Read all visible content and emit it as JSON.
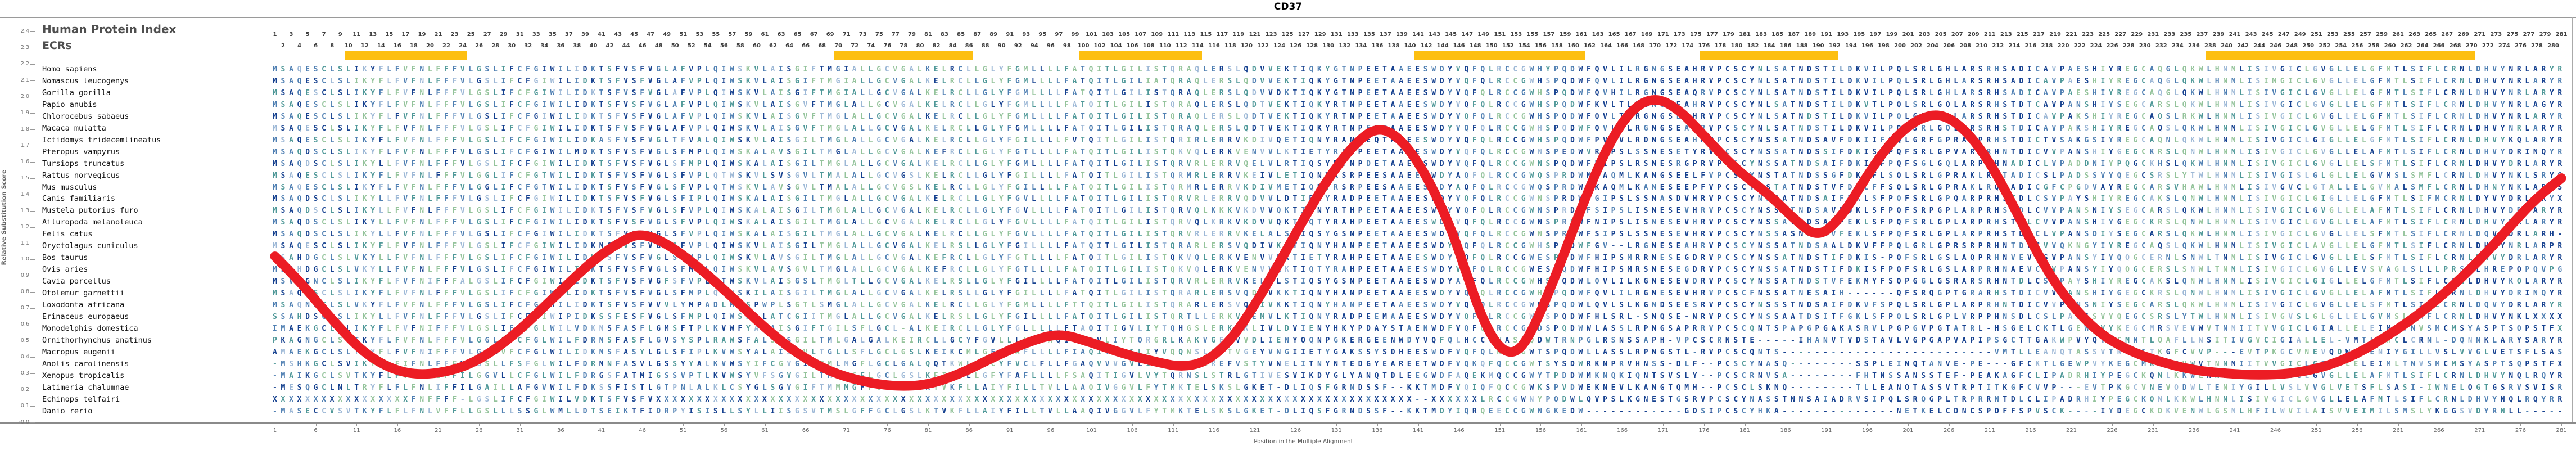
{
  "title": "CD37",
  "header": {
    "index_label": "Human Protein Index",
    "ecr_label": "ECRs"
  },
  "axes": {
    "y": {
      "title": "Relative Substitution Score",
      "max": 2.4,
      "min": 0.0,
      "step": 0.1
    },
    "x": {
      "title": "Position in the Multiple Alignment",
      "start": 1,
      "step": 5,
      "end": 281
    },
    "top_numbers": {
      "start": 1,
      "end": 281
    }
  },
  "colors": {
    "navy": "#16418f",
    "steel": "#4f7fb2",
    "teal": "#4f9898",
    "sage": "#94c39b",
    "lightsteel": "#9db8d6",
    "curve_red": "#ec1c24",
    "ecr_yellow": "#fdbf11",
    "species_text": "#141414",
    "axis_text": "#777777"
  },
  "ecr_regions": [
    {
      "start": 10,
      "end": 24
    },
    {
      "start": 70,
      "end": 86
    },
    {
      "start": 100,
      "end": 114
    },
    {
      "start": 141,
      "end": 161
    },
    {
      "start": 176,
      "end": 192
    },
    {
      "start": 238,
      "end": 270
    }
  ],
  "chart_data": {
    "type": "line",
    "title": "CD37",
    "xlabel": "Position in the Multiple Alignment",
    "ylabel": "Relative Substitution Score",
    "xlim": [
      1,
      281
    ],
    "ylim": [
      0.0,
      2.4
    ],
    "grid": false,
    "series_name": "conservation-score",
    "x": [
      1,
      4,
      8,
      12,
      16,
      20,
      25,
      30,
      35,
      40,
      44,
      46,
      49,
      53,
      57,
      61,
      65,
      69,
      73,
      77,
      81,
      85,
      89,
      93,
      97,
      101,
      105,
      109,
      112,
      115,
      118,
      121,
      124,
      127,
      130,
      133,
      136,
      139,
      142,
      145,
      147,
      149,
      151,
      153,
      155,
      158,
      161,
      164,
      167,
      170,
      173,
      176,
      180,
      184,
      187,
      190,
      193,
      196,
      199,
      202,
      205,
      208,
      211,
      214,
      217,
      220,
      224,
      228,
      232,
      236,
      240,
      244,
      248,
      252,
      256,
      260,
      264,
      268,
      272,
      275,
      278,
      281
    ],
    "y": [
      1.02,
      0.87,
      0.63,
      0.42,
      0.31,
      0.29,
      0.35,
      0.52,
      0.76,
      1.0,
      1.13,
      1.16,
      1.1,
      0.95,
      0.77,
      0.58,
      0.42,
      0.31,
      0.25,
      0.22,
      0.23,
      0.3,
      0.4,
      0.49,
      0.55,
      0.49,
      0.42,
      0.37,
      0.34,
      0.37,
      0.5,
      0.72,
      0.98,
      1.25,
      1.5,
      1.7,
      1.82,
      1.74,
      1.52,
      1.2,
      0.9,
      0.62,
      0.45,
      0.42,
      0.56,
      0.92,
      1.32,
      1.68,
      1.92,
      2.0,
      1.92,
      1.76,
      1.55,
      1.4,
      1.25,
      1.13,
      1.27,
      1.52,
      1.73,
      1.86,
      1.9,
      1.8,
      1.6,
      1.32,
      1.02,
      0.78,
      0.56,
      0.44,
      0.37,
      0.32,
      0.3,
      0.29,
      0.3,
      0.34,
      0.42,
      0.54,
      0.68,
      0.85,
      1.05,
      1.22,
      1.38,
      1.5
    ]
  },
  "alignment": {
    "rows": [
      {
        "species": "Homo sapiens",
        "seq": "MSAQESCLSLIKYFLFVFNLFFFVLGSLIFCFGIWILIDKTSFVSFVGLAFVPLQIWSKVLAISGIFTMGIALLGCVGALKELRCLLGLYFGMLLLLFATQITLGILISTQRAQLERSLQDVVEKTIQKYGTNPEETAAEESWDYVQFQLRCCGWHYPQDWFQVLILRGNGSEAHRVPCSCYNLSATNDSTILDKVILPQLSRLGHLARSRHSADICAVPAESHIYREGCAQGLQKWLHNNLISIVGICLGVGLLELGFMTLSIFLCRNLDHVYNRLARYR"
      },
      {
        "species": "Nomascus leucogenys",
        "seq": "MSAQESCLSLIKYFLFVFNLFFFVLGSLIFCFGIWILIDKTSFVSFVGLAFVPLQIWSKVLAISGIFTMGIALLGCVGALKELRCLLGLYFGMLLLLFATQITLGILIATQRAQLERSLQDVVEKTIQKYGTNPEETAAEESWDYVQFQLRCCGWHSPQDWFQVLILRGNGSEAHRVPCSCYNLSATNDSTILDKVILPQLSRLGHLARSRHSADICAVPAESHIYREGCAQGLQKWLHNNLISIMGICLGVGLLELGFMTLSIFLCRNLDHVYNRLARYR"
      },
      {
        "species": "Gorilla gorilla",
        "seq": "MSAQESCLSLIKYFLFVFNLFFFVLGSLIFCFGIWILIDKTSFVSFVGLAFVPLQIWSKVLAISGIFTMGIALLGCVGALKELRCLLGLYFGMLLLLFATQITLGILISTQRAQLERSLQDVVDKTIQKYGTNPEETAAEESWDYVQFQLRCCGWHSPQDWFQVHILRGNGSEAQRVPCSCYNLSATNDSTILDKVILPQLSRLGHLARSRHSADICAVPAESHIYREGCAQGLQKWLHNNLISIVGICLGVGLLELGFMTLSIFLCRNLDHVYNRLARYR"
      },
      {
        "species": "Papio anubis",
        "seq": "MSAQESCLSLIKYFLFVFNLFFFVLGSLIFCFGIWILIDKTSFVSFVGLAFVPLQIWSKVLAISGVFTMGLALLGCVGALKELRCLLGLYFGMLLLLFATQITLGILISTQRAQLERSLQDTVEKTIQKYRTNPEETAAEESWDYVQFQLRCCGWHSPQDWFKVLTLRGNGSEAHRVPCSCYNLSATNDSTILDKVTLPQLSRLGQLARSRHSTDTCAVPANSHIYSEGCARSLQKWLHNNLISIVGICLGVGLLELGFMTLSIFLCRNLDHVYNRLAGYR"
      },
      {
        "species": "Chlorocebus sabaeus",
        "seq": "MSAQESCLSLIKYFLFVFNLFFFVLGSLIFCFGIWILIDKTSFVSFVGLAFVPLQIWSKVLAISGVFTMGLALLGCVGALKELRCLLGLYFGMLLLLFATQITLGILISTQRAQLERSLQDTVEKTIQKYRTNPEETAAEESWDYVQFQLRCCGWHSPQDWFQVLTLRGNGSEAHRVPCSCYNLSATNDSTILDKVILPQLGRLGQLARSRHSTDICAVPAKSHIYREGCAQSLRKWLHNNLISIVGICLGVGLLELGFMTLSIFLCRNLDHVYNRLARYR"
      },
      {
        "species": "Macaca mulatta",
        "seq": "MSAQESCLSLIKYFLFVFNLFFFVLGSLIFCFGIWILIDKTSFVSFVGLAFVPLQIWSKVLAISGVFTMGLALLGCVGALKELRCLLGLYFGMLLLLFATQITLGILISTQRAQLERSLQDTVEKTIQKYRTNPEETAAEESWDYVQFQLRCCGWHSPQDWFQVLTLRGNGSEAHRVPCSCYNLSATNDSTILDKVILPQLSRLGQLARSRHSTDICAVPAKSHIYREGCAQSLQKWLHNNLISIVGICLGVGLLELGFMTLSIFLCRNLDHVYNRLARYR"
      },
      {
        "species": "Ictidomys tridecemlineatus",
        "seq": "MSAQESCLSLIKYFLFVFNLFFFVLGSLIFCFGIWILIDKASFVSFVGLTFVALQIWSKVLAISGILTMGLALLGCVGALKELRCLLGLYFGILLLLFVTQITLGILISTQRIRLERRVKDIVQETIQNYRANPEQTAAEESWDYVQFQLRCCGWHSPQDWFPVRVLRDNGSEAHHVPCSCYNSSATNDSAVFDKIIFPQLGRFGPRARPRHSTDICTVSAKGSIYREGCAQNLQKWLHNNLISIVGICLGIGLLELGFMTLSIFLCRNLDHVYKQLARYR"
      },
      {
        "species": "Pteropus vampyrus",
        "seq": "MSAQDSCLSLIKYFLFVFNLFFFVLGSLIFCFGIWILMDKTSFVSFVGLSFMPLQIWSKALAVSGILTMGLALLGCVGALKEFRCLLGLYFGTLLLLFATQITLGILISTQKVQLERKVENVVLKTIETYRAHPEETAAEESWDYVQFQLRCCGWNSPEDWVRVPSLSSNESETYRVPCSCYNSSATNDSSIFDKISLPQFSRLGPVARPRHNTDICVVPANSHIYGEGCKRSLQNWLHNNLISIVGICLGVGLLELAFMTLSIFLCRNLDHVYDRINQYR"
      },
      {
        "species": "Tursiops truncatus",
        "seq": "MSAQDSCLSLIKYLLFVFNLFFFVLGSLIFCFGIWILIDKTSFVSFVGLSFMPLQIWSKALAISGILTMGLALLGCVGALKELRCLLGLYFGMLLLLFATQITLGILISTQRVRLERRVQELVLRTIQSYRTNPDETAAEESWDYVQFQLRCCGWNSPQDWFRIPSLRSNESRGPRVPCSCYNSSATNDSAIFDKISFPQFSGLGQLARPRHNADICLVPADDNIYPQGCKHSLQKWLHNNLISIVGICLGVGLLELSFMTLSIFLCRNLDHVYDRLARYR"
      },
      {
        "species": "Rattus norvegicus",
        "seq": "MSAQESCLSLIKYFLFVFNLFFFVLGGLIFCFGTWILIDKTSFVSFVGLSFVPLQTWSKVLSVSGVLTMALALLGCVGSLKELRCLLGLYFGILLLLFATQITLGILISTQRMRLERRVKEIVLETIQNYRSRPEESAAEESWDYAQFQLRCCGWQSPRDWNKAQMLKANGSEELFVPCSCYNSTATNDSSGFDKLFLSQLSRLGPRAKLRQTADICSLPADSSVYQEGCSRSLYTWLHNNLISIVGISLGLGLLELGVMSLSMFLCRNLDHVYNKLSRYS"
      },
      {
        "species": "Mus musculus",
        "seq": "MSAQESCLSLIKYFLFVFNLFFFVLGGLIFCFGTWILIDKTSFVSFVGLSFVPLQTWSKVLAVSGVLTMALALLGCVGSLKELRCLLGLYFGILLLLFATQITLGILISTQRMRLERRVKDIVMETIQNYRSRPEESAAEESWDYAQFQLRCCGWQSPRDWNKAQMLKANESEEPFVPCSCYNSTATNDSTVFDKLFFSQLSRLGPRAKLRQTADICGFCPGDVAYREGCARSVHAWLHNNLISIVGVCLGTALLELGVMALSMFLCRNLDHNYNKLARYS"
      },
      {
        "species": "Canis familiaris",
        "seq": "MSAQDSCLSLIKYLLFVFNLFFFVLGSLIFCFGIWILIDKTSFVSFVGLSFIPLQIWSKALAISGILTMGLALLGCVGALKELRCLLGLYFGVLLLLFATQITLGILISTQRVRLERRVQDVVLDTIRNYRADPEETAAEESWDYVQFQLRCCGWNSPRDWFGIPSLSSNASDVHRVPCSCYNSSATNDSAIFEKLSFPQFSRLGPQARPRHSTDLCSVPAYSHIYREGCAKSLQNWLHNNLISIVGICLGIGLLELGFMTLSIFMCRNLDYVYDRLARYX"
      },
      {
        "species": "Mustela putorius furo",
        "seq": "MSAQDSCLSLIKYLLFVFNLFFFVLGSLIFCFGIWILIDKTSFVSFVGLSFVPLQIWSKALAISGILTMGLALLGCVGALKELRCLLGLYFGVLLLLFATQITLGILISTQRVQLKKKVKDVVQKTIQNYRTHPEETAAEESWDYVQFQLRCCGWNSPRDWFSIPSLISNESEVHRVPCSCYNSSATNDSAVFDKLSFPQFSRPGPLARPRHSTDLCVVPANSNIYSEGCARSLQKWLHNNLISIVGICLGVGLLELAFMTLSIFLCRNLDHVYDRLARYR"
      },
      {
        "species": "Ailuropoda melanoleuca",
        "seq": "MSAQDSCLSLIKYLLFVFNLFFFVLGSLIFCFGIWILIDKTSFVSFVGLSFVPLQIWSKALAISGILTMGLALLGCVGALKELRCLLGLYFGVLLLLFATQITLGILISTQRVQLKRKVKDVVQKTIQTYRAHPEETAAEESWDYVQFQLRCCGWNSPRDWFNIPSLISNESEVHRVPCSCYNSSATNDSAVFEKLSFPQFSRLGPLARPRHSTDLCVVPANSHIYGEGCKRSLQNWLHNNLISIVGICLGVGLLELAFMTLSIFLCRNLDHVYDRLARYR"
      },
      {
        "species": "Felis catus",
        "seq": "MSAQDSCLSLIKYLLFVFNLFFFVLGSLIFCFGIWILIDKTSFVSFVGLSFVPLQIWSKALAISGILTMGLALLGCVGALKELRCLLGLYFGVLLLLFATQITLGILISTQRVRLERRVKELALSTIQSYGSNPEETAAEESWDYVQFQLRCCGWNSPRDWFSIPSLSSNESEVHRVPCSCYNSSASNDSAVFEKLSFPQFSRLGPLARPRHSTDLCLVPANSDIYSEGCARSLQKWLHNNLISIVGICLGVGLLELSFMTLSIFLCRNLDQVYDRLARH-"
      },
      {
        "species": "Oryctolagus cuniculus",
        "seq": "MSAQESCLSLIKYFLFVFNLFFFVLGSLIFCFGIWILIDKNSFVSFVGLSFVPLQIWSKVLAISGILTMGLALLGCVGALKELRSLLGLYFGILLLLFATQITLGILISTQRARLERSVQDIVKKTIQNYHANPEETAAEESWDYVQFQLRCCGWHSPQDWFGV--LRGNESEAHRVPCSCYNSSATNDSAALDKVFFPQLGRLGPRSRPRHNTDLCVVQKNGYIYREGCAQSLQKWLHNNLISIVGICLAVGLLELGFMTLSIFLCRNLDHVYNRLARPR"
      },
      {
        "species": "Bos taurus",
        "seq": "MSAHDGCLSLVKYLLFVFNLFFFVLGSLIFCFGIWILIDKTSFVSFVGLSFMPLQIWSKVLAVSGILTMGLALLGCVGALKEFRCLLGLYFGTLLLLFATQITLGILISTQKVQLERKVENVVLKTIETYRAHPEETAAEESWDYVQFQLRCCGWESPQDWFHIPSMRRNESEGDRVPCSCYNSSATNDSTIFDKIS-PQFSRLGSLAQPRHNVEVCSVPANSYIYQQGCERNLSNWLTNNLISIVGICLGVGLLELSFMTLSIFLCRNLDHVYDRLARYR"
      },
      {
        "species": "Ovis aries",
        "seq": "MSAHDGCLSLVKYLLFVFNLFFFVLGSLIFCFGIWILIDKTSFVSFVGLSFMPLQIWSKVLAVSGVLTMGLALLGCVGALKEFRCLLGLYFGTLLLLFATQITLGILISTQKVQLERKVENVVLKTIQTYRAHPEETAAEESWDYVQFQLRCCGWESPQDWFHIPSMRSNESEGDRVPCSCYNSSATNDSTIFDKISFPQFSRLGSLARPRHNAEVCSVPANSYIYQQGCERSLSNWLTNNLISIVGICLGVGLLEVSVAGLSLLLPRSLLHREPQPQVPG"
      },
      {
        "species": "Cavia porcellus",
        "seq": "MSVQGNCLSLIKYFLFVFNIFFFALGSLIFCFGIWILIDKTSFVSFVGFSFVPLQTWSKVLAISGSLTMGLTLLGCVGALKELRSLLGLYFGILLLLFATQITLGILISTQRVRLERRVKELALSTIQSYGSNPEETAAEESWDYAQFQLRCCGWHSPQDWLQVLILKGNESEVDRVPCSCYNSSATNDSTVFEKMYFSQPGGLGSRARSRHNTDLCSVPAYSHIYREGCAKSLQNWLHNNLISIVGICLGIGLLELGFMTLSIFLCRNLDHVYKQLARYR"
      },
      {
        "species": "Otolemur garnettii",
        "seq": "MSAQESCLSLIKYFLFVFNLFFFVLGSLIFCFGIWILIDKTSFVSFVGLSFMPLQNWSKILAISGILTMGLALLGCVGALKELRSLLGLYFGILLLLFATQITLGILISTQRARLERSVQDIVKKTIQNYHANPEETAAEESWDYVQFQLRCCGWHSPQDWFQVLILRGNESEVHRVPCSCFNSSATNESAIH------QFSRQGPTGRARHSTDICVVPANSHIYGEGCKRSLQNWLHNNLISIVGICLGVGLLELAFMTLSIFLCRNLDHVYDRINQYR"
      },
      {
        "species": "Loxodonta africana",
        "seq": "MSAQNSCLSLVKYFLFVFNLFFFVLGSLIFCFGIWILIDKTSFVSFVVVLYMPADLMPSPWPLSGTLSMGLALLGCVGALKELRCLLGLYFGMLLLLFTTQITLGILISTQRARLERSVQDIVKKTIQNYHANPEETAAEESWDYVQFQLRCCGWNSPQDWLQVLSLKGNDSEESRVPCSCYNSSSTNDSAIFDKVFSPQLSRLGPLARPRHNTDICVVPENSNIYSEGCARSLQKWLHNNLISIVGICLGVGLLELSFMTLSIFLCRNLDQVYDRLARYR"
      },
      {
        "species": "Erinaceus europaeus",
        "seq": "SSAHDSCLSLIKYLLFVFNLFFFVLGSLIFCFGIWIPIDKSSFESFVGLSFMPLQIWSKALATCGIITMGLALLGCVGALKELRSLLGLYFGILLLLFATQITLGILISTQRTLLERKVQEMVLKTIQNYRADPEEMAAEESWDYVQFQLRCCGWNSPQDWFHLSRL-SNQSE-NRVPCSCYNSSAATDSITFGKLSFPQLSRLGPLVRPPHNSDLCSLPADSSVYQEGCSRSLYTWLHNNLISIVGVSLGLGLLELGVMSLSMFLCRNLDHVYNKLXXXX"
      },
      {
        "species": "Monodelphis domestica",
        "seq": "IMAEKGCLSLIKYFLFVFNIFFFVLGSLIFCFGLWILVDKNSFASFLGMSFTPLKVWFYALAISGIFTGILSFLGCL-ALKEIRCLLGLYFGLLLLLFTAQITIGVLIYTQHGSLERKVKLIVLDVIENYHKYPDAYSTAENWDFVQFQLRCCGWDSPQDWWLASSLRPNGSAPRRVPCSCQNTSPAPGPGAKASRVLPGPGVPGTATRL-HSGELCKTLGEWPVYKEGCMRSVEVWVTNNIITVVGICLGIALLELEIMLTNVSMCMSYASPTSQPSTFX"
      },
      {
        "species": "Ornithorhynchus anatinus",
        "seq": "PKAGNGCLSLTKYFLFVFNLFFFVLGGLLFCFGLWILFDRNSFASFLGVSYSPLRAWSFALSASGILTMLGALGALKEIRCLLGCYFGVLLLLFTAQITLGVLIYTQRGRLKAKVGEVVVDLIENYQQNPGKERGEENWDYVQFQLHCCGWASPQDWTRNPGLRSNSSAPH-VPCSCRNSTE-----IHANVTVDSTAVLVGPGAPVAPIPSGCTTGAKWPVYQTGCMNTLQAFLLNSITIVGVCIGIALLEL-VMTLSMCLCRNL-DQNNKLARYS"
      },
      {
        "species": "Macropus eugenii",
        "seq": "AMAEKGCLSLTKYFLFVFNIFFFVLGSLVFCFGLWILIDKNSFASYLGLSFIPLKVWSYALAISGVLTGLLSFLGCLGSLKEIKCMLGFYFAFLLLLFIAQITIGILIYVQQNSLKKTVGEYVNGIIETYGAKSSYSDHEESWDFVQFQLRCCGWTSPQDWLLASSLRPNGSTL-RVPCSCQNTS--------------------------VMTLLEANQTASSVTRPTITKGFCVVP---EVTPKGCVNEVQDWLTENIYGILLVSLVVGLVETSFLSAS"
      },
      {
        "species": "Anolis carolinensis",
        "seq": "-MSHKGCLSVIKYFLFIFNLFFFMLGSLLFSFGLWILFDRNNFASVLGSSYYALKVWSYIFCGVGILTMLMGFLGCLGALQQTKWLLGCYFVCLFLLFGAQVVVGVLIYTQRSSLREFVSTYVNELITNYNTEDGYEAREETWDFVQKQFQCCGWTSYSDWRKNPRVHNSS-DLF--PCSCYNASQ--------SSPLEINQTANVE-PE---GFCKTLGEWPVYKEGCMRSVEVWVTNNNIITVVGICLGIALLELEIMLTNVSMCMSYASPTSQPSTFX"
      },
      {
        "species": "Xenopus tropicalis",
        "seq": "-MAIKGCLSVTKYFLFVFNLLFFILGGVLLCFGLWILFDRGSFATMIGSSVPTLKVWSYVFSGVGILTMLLGFLGCLGSLKEIKCLLGFYFAFLLLLFSAQITIGVLVYTQRNSLSTRLGTIVESVIKDYGLYANQTDLEEGWDFAQEKMQCCGWYTPDDWMKNQKIQNTSVSLY--PCSCRNVSA--------FHTNSSANSSTEF-PEAKAGFCLIPADRHIYPEGCKQNLKKWLHNNNLISIVGICLGVGLLELAFMTLSIFLCRNLDHVYNQLRQYR"
      },
      {
        "species": "Latimeria chalumnae",
        "seq": "-MESQGCLNLTRYFLFLFNLIFFILGAILLAFGVWILFDKSSFISTLGTPNLALKLCSYGLSGVGIFTMMMGFFGCLGSLKTVKFLLAIYFILLTVLLAAQIVGGVLFYTMKTELSKSLGKET-DLIQSFGRNDSSF--KKTMDFVQIQFQCCGWKSPVDWEKNEVLKANGTQMH--PCSCLSKNQ--------TLLEANQTASSVTRPTITKGFCVVP---EVTPKGCVNEVQDWLTENIYGILLVSLVVGLVETSFLSASI-IWNELQGTGSRVSVISR"
      },
      {
        "species": "Echinops telfairi",
        "seq": "XXXXXXXXXXXXXXXXXFNFFFF-LGSLIFCFGIWILVDKTSFVSFVXXXXXXXXXXXXXXXXXXXXXXXXXXXXXXXXXXXXXXXXXXXXXXXXXXXXXXXXXXXXXXXXXXXXXXXXXXXXXXXXXXXXXXXXXXXXX--XXXXXXLRCCGWNYPQDWLQVPSLKGNESTGSRVPCSCYNASSTNNSAIADRVSIPQLSRQGPLTRPRRNTDLCLIPADRHIYPEGCKQNLKKWLHNNLISIVGICLGVGLLELAFMTLSIFLCRNLDHVYNQLRQYR"
      },
      {
        "species": "Danio rerio",
        "seq": "-MASECCVSVTKYFLFLFNLVFFLLGSLLLSSGLWMLLDTSEIKTFIDRPYISISLLSYLLIISGSVTMSLGFFGCLGSLKTVKFLLAIYFILLTVLLAAQIVGGVLFYTMKTELSKSLGKET-DLIQSFGRNDSSF--KKTMDYIQRQEECCGWNGKEDW------------GDSIPCSCYHKA--------------NETKELCDNCSPDFFSPVSCK----IYDEGCKDKVENWLGSNLHFILWVILAISVVEIMILSMSLYKGGSVDYRNLL-----"
      }
    ]
  }
}
